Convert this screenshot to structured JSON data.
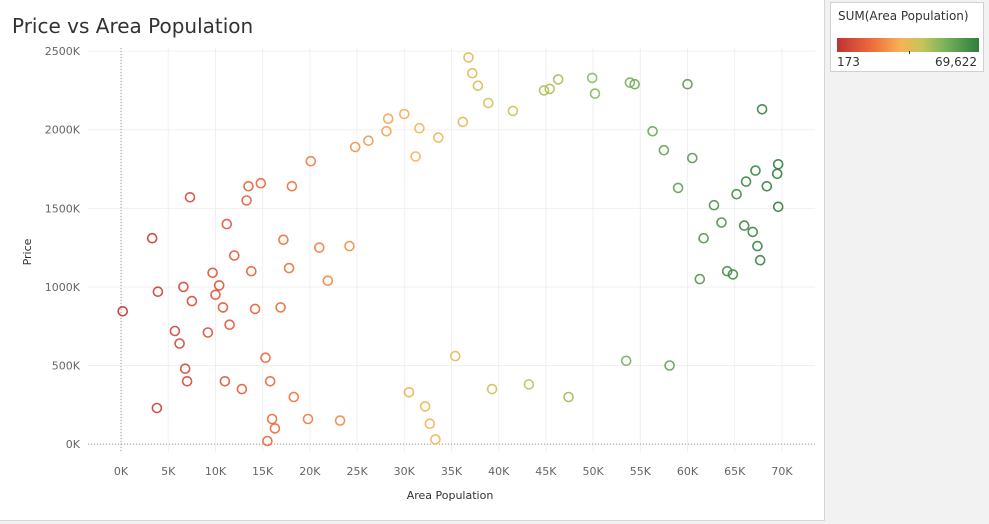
{
  "title": "Price vs Area Population",
  "legend": {
    "title": "SUM(Area Population)",
    "min_label": "173",
    "max_label": "69,622",
    "colors": [
      "#c93a36",
      "#f08a45",
      "#f5b757",
      "#a9c25a",
      "#2e7d3e"
    ]
  },
  "chart_data": {
    "type": "scatter",
    "title": "Price vs Area Population",
    "xlabel": "Area Population",
    "ylabel": "Price",
    "xlim": [
      -3500,
      73500
    ],
    "ylim": [
      -50000,
      2520000
    ],
    "x_ticks": [
      0,
      5000,
      10000,
      15000,
      20000,
      25000,
      30000,
      35000,
      40000,
      45000,
      50000,
      55000,
      60000,
      65000,
      70000
    ],
    "x_tick_labels": [
      "0K",
      "5K",
      "10K",
      "15K",
      "20K",
      "25K",
      "30K",
      "35K",
      "40K",
      "45K",
      "50K",
      "55K",
      "60K",
      "65K",
      "70K"
    ],
    "y_ticks": [
      0,
      500000,
      1000000,
      1500000,
      2000000,
      2500000
    ],
    "y_tick_labels": [
      "0K",
      "500K",
      "1000K",
      "1500K",
      "2000K",
      "2500K"
    ],
    "grid": true,
    "marker": "hollow-circle",
    "color_by": "Area Population",
    "color_range": [
      173,
      69622
    ],
    "points": [
      [
        173,
        845000
      ],
      [
        3300,
        1310000
      ],
      [
        3900,
        970000
      ],
      [
        3800,
        230000
      ],
      [
        5700,
        720000
      ],
      [
        6200,
        640000
      ],
      [
        6600,
        1000000
      ],
      [
        6800,
        480000
      ],
      [
        7000,
        400000
      ],
      [
        7300,
        1570000
      ],
      [
        7500,
        910000
      ],
      [
        9200,
        710000
      ],
      [
        9700,
        1090000
      ],
      [
        10000,
        950000
      ],
      [
        10400,
        1010000
      ],
      [
        10800,
        870000
      ],
      [
        11000,
        400000
      ],
      [
        11200,
        1400000
      ],
      [
        11500,
        760000
      ],
      [
        12000,
        1200000
      ],
      [
        12800,
        350000
      ],
      [
        13300,
        1550000
      ],
      [
        13500,
        1640000
      ],
      [
        13800,
        1100000
      ],
      [
        14200,
        860000
      ],
      [
        14800,
        1660000
      ],
      [
        15300,
        550000
      ],
      [
        15500,
        20000
      ],
      [
        15800,
        400000
      ],
      [
        16000,
        160000
      ],
      [
        16300,
        100000
      ],
      [
        16900,
        870000
      ],
      [
        17200,
        1300000
      ],
      [
        17800,
        1120000
      ],
      [
        18100,
        1640000
      ],
      [
        18300,
        300000
      ],
      [
        19800,
        160000
      ],
      [
        20100,
        1800000
      ],
      [
        21000,
        1250000
      ],
      [
        21900,
        1040000
      ],
      [
        23200,
        150000
      ],
      [
        24800,
        1890000
      ],
      [
        24200,
        1260000
      ],
      [
        26200,
        1930000
      ],
      [
        28100,
        1990000
      ],
      [
        28300,
        2070000
      ],
      [
        30000,
        2100000
      ],
      [
        30500,
        330000
      ],
      [
        31200,
        1830000
      ],
      [
        31600,
        2010000
      ],
      [
        32200,
        240000
      ],
      [
        32700,
        130000
      ],
      [
        33300,
        30000
      ],
      [
        33600,
        1950000
      ],
      [
        35400,
        560000
      ],
      [
        36200,
        2050000
      ],
      [
        36800,
        2460000
      ],
      [
        37200,
        2360000
      ],
      [
        37800,
        2280000
      ],
      [
        38900,
        2170000
      ],
      [
        39300,
        350000
      ],
      [
        41500,
        2120000
      ],
      [
        43200,
        380000
      ],
      [
        44800,
        2250000
      ],
      [
        45400,
        2260000
      ],
      [
        46300,
        2320000
      ],
      [
        47400,
        300000
      ],
      [
        49900,
        2330000
      ],
      [
        50200,
        2230000
      ],
      [
        53500,
        530000
      ],
      [
        53900,
        2300000
      ],
      [
        54400,
        2290000
      ],
      [
        56300,
        1990000
      ],
      [
        57500,
        1870000
      ],
      [
        58100,
        500000
      ],
      [
        59000,
        1630000
      ],
      [
        60000,
        2290000
      ],
      [
        60500,
        1820000
      ],
      [
        61300,
        1050000
      ],
      [
        61700,
        1310000
      ],
      [
        62800,
        1520000
      ],
      [
        63600,
        1410000
      ],
      [
        64200,
        1100000
      ],
      [
        64800,
        1080000
      ],
      [
        65200,
        1590000
      ],
      [
        66000,
        1390000
      ],
      [
        66200,
        1670000
      ],
      [
        66900,
        1350000
      ],
      [
        67200,
        1740000
      ],
      [
        67400,
        1260000
      ],
      [
        67700,
        1170000
      ],
      [
        67900,
        2130000
      ],
      [
        68400,
        1640000
      ],
      [
        69600,
        1780000
      ],
      [
        69600,
        1510000
      ],
      [
        69500,
        1720000
      ]
    ]
  }
}
